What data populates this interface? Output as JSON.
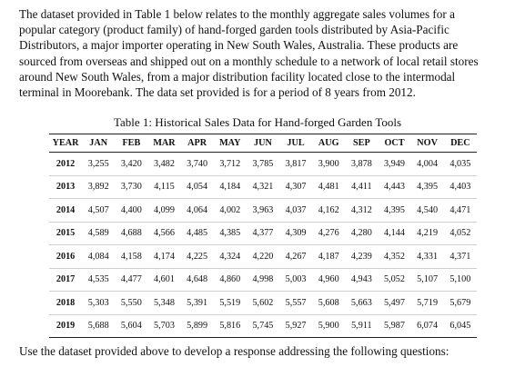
{
  "intro": {
    "lines": [
      "The dataset provided in Table 1 below relates to the monthly aggregate sales volumes for a",
      "popular category (product family) of hand-forged garden tools distributed by Asia-Pacific",
      "Distributors, a major importer operating in New South Wales, Australia. These products are",
      "sourced from overseas and shipped out on a monthly schedule to a network of local retail stores",
      "around New South Wales, from a major distribution facility located close to the intermodal",
      "terminal in Moorebank. The data set provided is for a period of 8 years from 2012."
    ]
  },
  "table": {
    "caption": "Table 1: Historical Sales Data for Hand-forged Garden Tools",
    "headers": [
      "YEAR",
      "JAN",
      "FEB",
      "MAR",
      "APR",
      "MAY",
      "JUN",
      "JUL",
      "AUG",
      "SEP",
      "OCT",
      "NOV",
      "DEC"
    ],
    "rows": [
      [
        "2012",
        "3,255",
        "3,420",
        "3,482",
        "3,740",
        "3,712",
        "3,785",
        "3,817",
        "3,900",
        "3,878",
        "3,949",
        "4,004",
        "4,035"
      ],
      [
        "2013",
        "3,892",
        "3,730",
        "4,115",
        "4,054",
        "4,184",
        "4,321",
        "4,307",
        "4,481",
        "4,411",
        "4,443",
        "4,395",
        "4,403"
      ],
      [
        "2014",
        "4,507",
        "4,400",
        "4,099",
        "4,064",
        "4,002",
        "3,963",
        "4,037",
        "4,162",
        "4,312",
        "4,395",
        "4,540",
        "4,471"
      ],
      [
        "2015",
        "4,589",
        "4,688",
        "4,566",
        "4,485",
        "4,385",
        "4,377",
        "4,309",
        "4,276",
        "4,280",
        "4,144",
        "4,219",
        "4,052"
      ],
      [
        "2016",
        "4,084",
        "4,158",
        "4,174",
        "4,225",
        "4,324",
        "4,220",
        "4,267",
        "4,187",
        "4,239",
        "4,352",
        "4,331",
        "4,371"
      ],
      [
        "2017",
        "4,535",
        "4,477",
        "4,601",
        "4,648",
        "4,860",
        "4,998",
        "5,003",
        "4,960",
        "4,943",
        "5,052",
        "5,107",
        "5,100"
      ],
      [
        "2018",
        "5,303",
        "5,550",
        "5,348",
        "5,391",
        "5,519",
        "5,602",
        "5,557",
        "5,608",
        "5,663",
        "5,497",
        "5,719",
        "5,679"
      ],
      [
        "2019",
        "5,688",
        "5,604",
        "5,703",
        "5,899",
        "5,816",
        "5,745",
        "5,927",
        "5,900",
        "5,911",
        "5,987",
        "6,074",
        "6,045"
      ]
    ]
  },
  "outro": {
    "text": "Use the dataset provided above to develop a response addressing the following questions:"
  }
}
